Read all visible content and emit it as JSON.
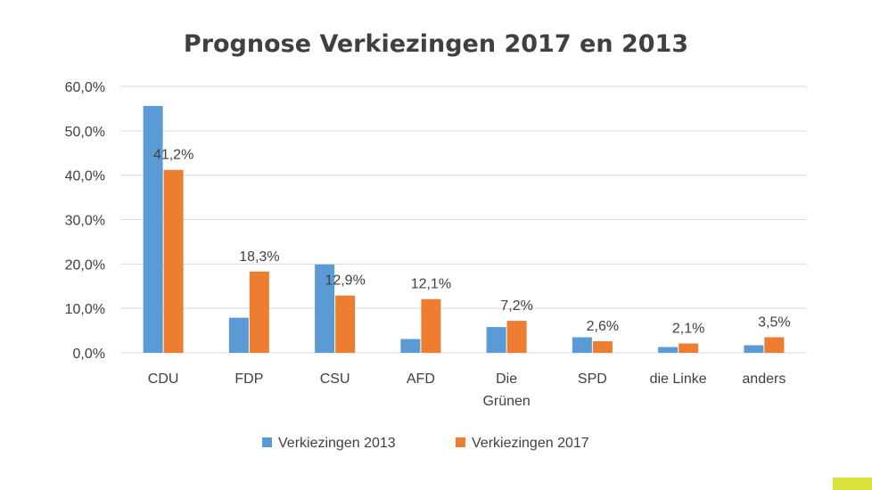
{
  "chart_data": {
    "type": "bar",
    "title": "Prognose Verkiezingen 2017 en 2013",
    "categories": [
      "CDU",
      "FDP",
      "CSU",
      "AFD",
      "Die Grünen",
      "SPD",
      "die Linke",
      "anders"
    ],
    "series": [
      {
        "name": "Verkiezingen 2013",
        "color": "#5b9bd5",
        "values": [
          55.6,
          7.9,
          19.9,
          3.1,
          5.8,
          3.5,
          1.3,
          1.7
        ]
      },
      {
        "name": "Verkiezingen 2017",
        "color": "#ed7d31",
        "values": [
          41.2,
          18.3,
          12.9,
          12.1,
          7.2,
          2.6,
          2.1,
          3.5
        ],
        "data_labels": [
          "41,2%",
          "18,3%",
          "12,9%",
          "12,1%",
          "7,2%",
          "2,6%",
          "2,1%",
          "3,5%"
        ]
      }
    ],
    "y_ticks": [
      "0,0%",
      "10,0%",
      "20,0%",
      "30,0%",
      "40,0%",
      "50,0%",
      "60,0%"
    ],
    "ylim": [
      0,
      60
    ],
    "grid": true,
    "legend": "bottom"
  }
}
